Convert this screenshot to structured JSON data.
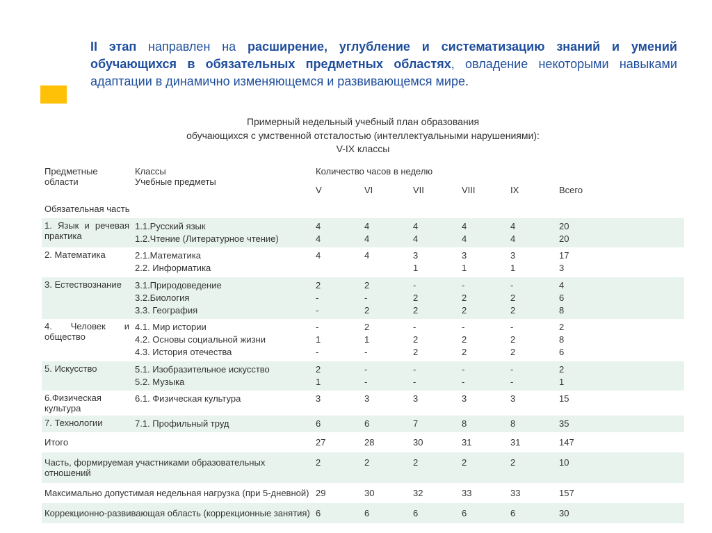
{
  "heading": {
    "b1": "II этап",
    "p1": " направлен на ",
    "b2": "расширение, углубление и систематизацию знаний и умений обучающихся в обязательных предметных областях",
    "p2": ", овладение некоторыми навыками адаптации в динамично изменяющемся и развивающемся мире."
  },
  "table_title_l1": "Примерный недельный учебный план образования",
  "table_title_l2": "обучающихся с умственной отсталостью (интеллектуальными нарушениями):",
  "table_title_l3": "V-IX классы",
  "hdr": {
    "areas": "Предметные области",
    "classes": "Классы",
    "subjects": "Учебные предметы",
    "hours": "Количество часов в неделю",
    "c1": "V",
    "c2": "VI",
    "c3": "VII",
    "c4": "VIII",
    "c5": "IX",
    "total": "Всего"
  },
  "section_mandatory": "Обязательная часть",
  "rows": [
    {
      "area": "1. Язык и речевая практика",
      "subjects": [
        "1.1.Русский язык",
        "1.2.Чтение (Литературное чтение)"
      ],
      "v": [
        [
          "4",
          "4"
        ],
        [
          "4",
          "4"
        ],
        [
          "4",
          "4"
        ],
        [
          "4",
          "4"
        ],
        [
          "4",
          "4"
        ],
        [
          "20",
          "20"
        ]
      ],
      "stripe": true,
      "area_justify": true
    },
    {
      "area": "2. Математика",
      "subjects": [
        "2.1.Математика",
        "2.2. Информатика"
      ],
      "v": [
        [
          "4",
          ""
        ],
        [
          "4",
          ""
        ],
        [
          "3",
          "1"
        ],
        [
          "3",
          "1"
        ],
        [
          "3",
          "1"
        ],
        [
          "17",
          "3"
        ]
      ],
      "stripe": false
    },
    {
      "area": "3. Естествознание",
      "subjects": [
        "3.1.Природоведение",
        "3.2.Биология",
        "3.3. География"
      ],
      "v": [
        [
          "2",
          "-",
          "-"
        ],
        [
          "2",
          "-",
          "2"
        ],
        [
          "-",
          "2",
          "2"
        ],
        [
          "-",
          "2",
          "2"
        ],
        [
          "-",
          "2",
          "2"
        ],
        [
          "4",
          "6",
          "8"
        ]
      ],
      "stripe": true
    },
    {
      "area": "4. Человек и общество",
      "subjects": [
        "4.1. Мир истории",
        "4.2. Основы социальной жизни",
        "4.3. История отечества"
      ],
      "v": [
        [
          "-",
          "1",
          "-"
        ],
        [
          "2",
          "1",
          "-"
        ],
        [
          "-",
          "2",
          " 2"
        ],
        [
          "-",
          "2",
          "2"
        ],
        [
          "-",
          "2",
          "2"
        ],
        [
          "2",
          "8",
          "6"
        ]
      ],
      "stripe": false,
      "area_justify": true
    },
    {
      "area": "5. Искусство",
      "subjects": [
        "5.1. Изобразительное искусство",
        "5.2. Музыка"
      ],
      "v": [
        [
          "2",
          "1"
        ],
        [
          "-",
          "-"
        ],
        [
          "-",
          "-"
        ],
        [
          "-",
          "-"
        ],
        [
          "-",
          "-"
        ],
        [
          "2",
          "1"
        ]
      ],
      "stripe": true
    },
    {
      "area": "6.Физическая культура",
      "subjects": [
        "6.1. Физическая культура"
      ],
      "v": [
        [
          "3"
        ],
        [
          "3"
        ],
        [
          "3"
        ],
        [
          "3"
        ],
        [
          "3"
        ],
        [
          "15"
        ]
      ],
      "stripe": false
    },
    {
      "area": "7. Технологии",
      "subjects": [
        "7.1. Профильный труд"
      ],
      "v": [
        [
          "6"
        ],
        [
          "6"
        ],
        [
          "7"
        ],
        [
          "8"
        ],
        [
          "8"
        ],
        [
          "35"
        ]
      ],
      "stripe": true
    }
  ],
  "summary": [
    {
      "label": "Итого",
      "v": [
        "27",
        "28",
        "30",
        "31",
        "31",
        "147"
      ],
      "stripe": false
    },
    {
      "label": "Часть, формируемая участниками образовательных отношений",
      "v": [
        "2",
        "2",
        "2",
        "2",
        "2",
        "10"
      ],
      "stripe": true
    },
    {
      "label": "Максимально допустимая недельная нагрузка (при 5-дневной)",
      "v": [
        "29",
        "30",
        "32",
        "33",
        "33",
        "157"
      ],
      "stripe": false
    },
    {
      "label": "Коррекционно-развивающая область (коррекционные занятия)",
      "v": [
        "6",
        "6",
        "6",
        "6",
        "6",
        "30"
      ],
      "stripe": true
    }
  ],
  "colors": {
    "stripe": "#e8f3ee",
    "accent": "#ffc107",
    "heading_blue": "#1f4e9c",
    "text": "#333333",
    "background": "#ffffff"
  },
  "typography": {
    "heading_fontsize": 18,
    "table_fontsize": 13,
    "title_fontsize": 14,
    "font_family": "Arial"
  }
}
